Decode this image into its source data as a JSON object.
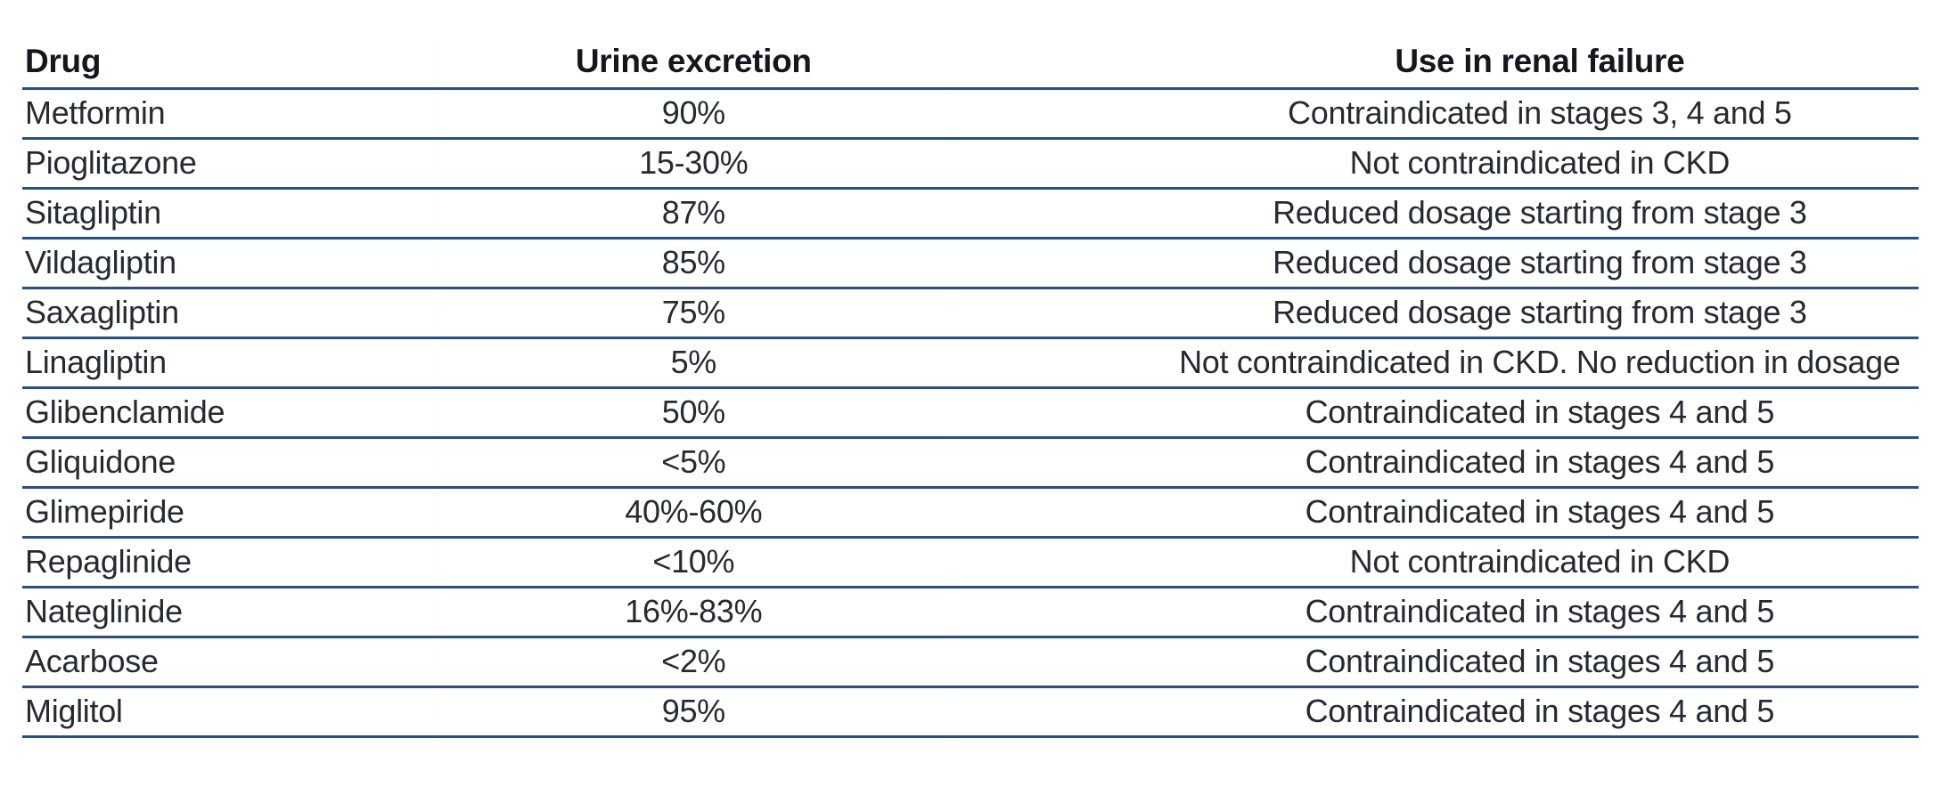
{
  "chart_data": {
    "type": "table",
    "title": "",
    "columns": [
      "Drug",
      "Urine excretion",
      "Use in renal failure"
    ],
    "rows": [
      [
        "Metformin",
        "90%",
        "Contraindicated in stages 3, 4 and 5"
      ],
      [
        "Pioglitazone",
        "15-30%",
        "Not contraindicated in CKD"
      ],
      [
        "Sitagliptin",
        "87%",
        "Reduced dosage starting from stage 3"
      ],
      [
        "Vildagliptin",
        "85%",
        "Reduced dosage starting from stage 3"
      ],
      [
        "Saxagliptin",
        "75%",
        "Reduced dosage starting from stage 3"
      ],
      [
        "Linagliptin",
        "5%",
        "Not contraindicated in CKD. No reduction in dosage"
      ],
      [
        "Glibenclamide",
        "50%",
        "Contraindicated in stages 4 and 5"
      ],
      [
        "Gliquidone",
        "<5%",
        "Contraindicated in stages 4 and 5"
      ],
      [
        "Glimepiride",
        "40%-60%",
        "Contraindicated in stages 4 and 5"
      ],
      [
        "Repaglinide",
        "<10%",
        "Not contraindicated in CKD"
      ],
      [
        "Nateglinide",
        "16%-83%",
        "Contraindicated in stages 4 and 5"
      ],
      [
        "Acarbose",
        "<2%",
        "Contraindicated in stages 4 and 5"
      ],
      [
        "Miglitol",
        "95%",
        "Contraindicated in stages 4 and 5"
      ]
    ],
    "layout": {
      "column_alignments": [
        "left",
        "center",
        "center"
      ],
      "grid": "horizontal-rules-only",
      "header_style": "bold",
      "legend": "none"
    }
  },
  "colors": {
    "rule": "#2e4f7c",
    "rule_glow": "#ddeef8",
    "header_text": "#14181e",
    "body_text": "#262b31",
    "background": "#ffffff"
  }
}
